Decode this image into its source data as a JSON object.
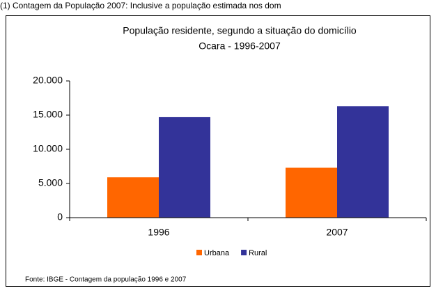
{
  "note_top": "(1) Contagem da População 2007: Inclusive a população estimada nos dom",
  "chart_data": {
    "type": "bar",
    "title": "População residente, segundo a situação do domicílio",
    "subtitle": "Ocara - 1996-2007",
    "categories": [
      "1996",
      "2007"
    ],
    "series": [
      {
        "name": "Urbana",
        "color": "#ff6600",
        "values": [
          5900,
          7300
        ]
      },
      {
        "name": "Rural",
        "color": "#333399",
        "values": [
          14700,
          16300
        ]
      }
    ],
    "ylim": [
      0,
      20000
    ],
    "yticks": [
      0,
      {
        "value": 5000,
        "label": "5.000"
      },
      {
        "value": 10000,
        "label": "10.000"
      },
      {
        "value": 15000,
        "label": "15.000"
      },
      {
        "value": 20000,
        "label": "20.000"
      }
    ],
    "legend": "bottom",
    "source": "Fonte: IBGE - Contagem da população 1996 e 2007"
  }
}
